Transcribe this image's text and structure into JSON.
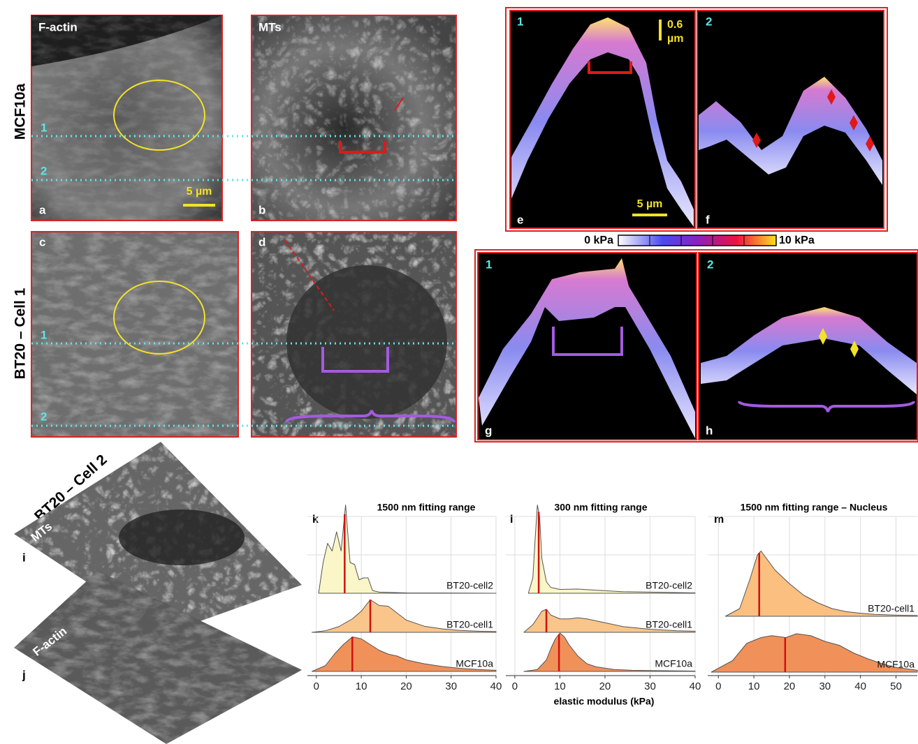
{
  "figure": {
    "row_labels": [
      "MCF10a",
      "BT20 – Cell 1",
      "BT20 – Cell 2"
    ],
    "images": [
      {
        "letter": "a",
        "channel": "F-actin",
        "lines": [
          "1",
          "2"
        ],
        "scale": "5 µm"
      },
      {
        "letter": "b",
        "channel": "MTs"
      },
      {
        "letter": "c",
        "lines": [
          "1",
          "2"
        ]
      },
      {
        "letter": "d"
      }
    ],
    "profiles": [
      {
        "letter": "e",
        "line": "1",
        "scale_v": [
          "0.6",
          "µm"
        ],
        "scale_h": "5 µm"
      },
      {
        "letter": "f",
        "line": "2"
      },
      {
        "letter": "g",
        "line": "1"
      },
      {
        "letter": "h",
        "line": "2"
      }
    ],
    "colorbar": {
      "min_label": "0 kPa",
      "max_label": "10 kPa"
    },
    "cell2": [
      {
        "letter": "i",
        "channel": "MTs"
      },
      {
        "letter": "j",
        "channel": "F-actin"
      }
    ]
  },
  "chart_data": [
    {
      "type": "ridgeline",
      "panel": "k",
      "title": "1500 nm fitting range",
      "xlim": [
        -2,
        40
      ],
      "xticks": [
        0,
        10,
        20,
        30,
        40
      ],
      "grid": true,
      "series": [
        {
          "name": "BT20-cell2",
          "color": "#faf6c8",
          "median": 6.3,
          "x": [
            0.5,
            1.5,
            2.5,
            3.5,
            4.5,
            5.5,
            6.5,
            7.5,
            8.5,
            9.5,
            10.5,
            11.5,
            12.5,
            14,
            20,
            40
          ],
          "values": [
            0,
            0.8,
            1.3,
            1.1,
            1.6,
            1.1,
            2.3,
            0.8,
            0.75,
            0.35,
            0.4,
            0.4,
            0.07,
            0.03,
            0.01,
            0
          ]
        },
        {
          "name": "BT20-cell1",
          "color": "#f9c58a",
          "median": 12,
          "x": [
            -1,
            2,
            5,
            8,
            10,
            12,
            14,
            16,
            18,
            20,
            24,
            28,
            32,
            36,
            40
          ],
          "values": [
            0,
            0.04,
            0.15,
            0.35,
            0.55,
            0.85,
            0.7,
            0.68,
            0.5,
            0.32,
            0.16,
            0.09,
            0.05,
            0.03,
            0.02
          ]
        },
        {
          "name": "MCF10a",
          "color": "#f0915a",
          "median": 8,
          "x": [
            -1,
            2,
            4,
            6,
            8,
            10,
            12,
            14,
            16,
            18,
            20,
            24,
            28,
            32,
            36,
            40
          ],
          "values": [
            0,
            0.15,
            0.45,
            0.7,
            0.9,
            0.85,
            0.7,
            0.55,
            0.45,
            0.4,
            0.3,
            0.2,
            0.13,
            0.08,
            0.05,
            0.03
          ]
        }
      ]
    },
    {
      "type": "ridgeline",
      "panel": "l",
      "title": "300 nm fitting range",
      "x_label": "elastic modulus (kPa)",
      "xlim": [
        -2,
        40
      ],
      "xticks": [
        0,
        10,
        20,
        30,
        40
      ],
      "grid": true,
      "series": [
        {
          "name": "BT20-cell2",
          "color": "#faf6c8",
          "median": 5.3,
          "x": [
            3,
            4,
            4.5,
            5,
            5.5,
            6,
            7,
            8,
            10,
            14,
            18,
            24,
            30,
            40
          ],
          "values": [
            0,
            0.4,
            1.4,
            2.3,
            2.0,
            0.9,
            0.3,
            0.15,
            0.1,
            0.11,
            0.08,
            0.04,
            0.03,
            0.01
          ]
        },
        {
          "name": "BT20-cell1",
          "color": "#f9c58a",
          "median": 7,
          "x": [
            2,
            4,
            6,
            7,
            8,
            10,
            12,
            14,
            16,
            20,
            24,
            30,
            36,
            40
          ],
          "values": [
            0,
            0.2,
            0.55,
            0.6,
            0.45,
            0.35,
            0.35,
            0.38,
            0.35,
            0.25,
            0.15,
            0.08,
            0.04,
            0.03
          ]
        },
        {
          "name": "MCF10a",
          "color": "#f0915a",
          "median": 9.8,
          "x": [
            2,
            5,
            7,
            8,
            9,
            10,
            11,
            12,
            14,
            16,
            18,
            22,
            26,
            32,
            40
          ],
          "values": [
            0,
            0.05,
            0.3,
            0.6,
            0.85,
            1.0,
            0.9,
            0.7,
            0.4,
            0.2,
            0.12,
            0.05,
            0.03,
            0.02,
            0.01
          ]
        }
      ]
    },
    {
      "type": "ridgeline",
      "panel": "m",
      "title": "1500 nm fitting range – Nucleus",
      "xlim": [
        -3,
        56
      ],
      "xticks": [
        0,
        10,
        20,
        30,
        40,
        50
      ],
      "grid": true,
      "series": [
        {
          "name": "BT20-cell1",
          "color": "#fbbf80",
          "median": 11.5,
          "x": [
            2,
            6,
            9,
            11,
            12,
            14,
            16,
            20,
            24,
            28,
            32,
            36,
            40,
            44,
            50,
            56
          ],
          "values": [
            0,
            0.2,
            1.0,
            1.6,
            1.7,
            1.45,
            1.2,
            0.85,
            0.55,
            0.35,
            0.2,
            0.12,
            0.08,
            0.05,
            0.03,
            0.02
          ]
        },
        {
          "name": "MCF10a",
          "color": "#f0915a",
          "median": 18.8,
          "x": [
            -2,
            4,
            8,
            12,
            15,
            19,
            22,
            26,
            30,
            34,
            38,
            42,
            46,
            50,
            56
          ],
          "values": [
            0,
            0.3,
            0.75,
            0.9,
            0.95,
            0.9,
            1.0,
            0.95,
            0.8,
            0.7,
            0.5,
            0.35,
            0.22,
            0.12,
            0.05
          ]
        }
      ]
    }
  ]
}
